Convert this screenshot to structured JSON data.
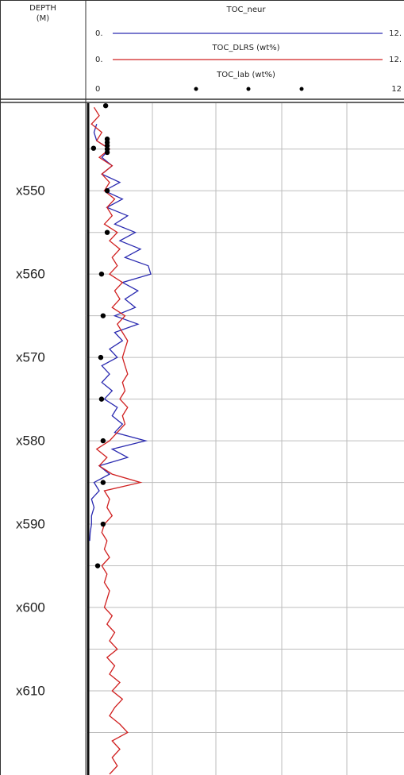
{
  "chart_data": {
    "type": "well-log",
    "depth_title": "DEPTH",
    "depth_unit": "(M)",
    "xlim": [
      0,
      12
    ],
    "ylim": [
      539.5,
      620.1
    ],
    "yticks": [
      {
        "value": 550,
        "label": "x550"
      },
      {
        "value": 560,
        "label": "x560"
      },
      {
        "value": 570,
        "label": "x570"
      },
      {
        "value": 580,
        "label": "x580"
      },
      {
        "value": 590,
        "label": "x590"
      },
      {
        "value": 600,
        "label": "x600"
      },
      {
        "value": 610,
        "label": "x610"
      }
    ],
    "ygrid": [
      545,
      555,
      565,
      575,
      585,
      595,
      605,
      615
    ],
    "series": [
      {
        "name": "TOC_neur",
        "color": "#2a2ab0",
        "style": "line",
        "scale": [
          {
            "value": 0,
            "label": "0."
          },
          {
            "value": 12,
            "label": "12."
          }
        ],
        "depths": [
          542,
          543,
          544,
          545,
          546,
          547,
          548,
          549,
          550,
          551,
          552,
          553,
          554,
          555,
          556,
          557,
          558,
          559,
          560,
          561,
          562,
          563,
          564,
          565,
          566,
          567,
          568,
          569,
          570,
          571,
          572,
          573,
          574,
          575,
          576,
          577,
          578,
          579,
          580,
          581,
          582,
          583,
          584,
          585,
          586,
          587,
          588,
          589,
          590,
          591,
          592
        ],
        "values": [
          0.3,
          0.2,
          0.3,
          0.8,
          0.5,
          0.9,
          0.5,
          1.2,
          0.6,
          1.3,
          0.7,
          1.5,
          1.0,
          1.8,
          1.2,
          2.0,
          1.4,
          2.3,
          2.4,
          1.3,
          1.9,
          1.4,
          1.8,
          1.0,
          1.9,
          1.0,
          1.3,
          0.8,
          1.1,
          0.5,
          0.8,
          0.5,
          0.9,
          0.6,
          1.1,
          0.9,
          1.3,
          1.0,
          2.2,
          0.9,
          1.5,
          0.4,
          0.8,
          0.2,
          0.4,
          0.1,
          0.2,
          0.1,
          0.1,
          0.05,
          0.03
        ]
      },
      {
        "name": "TOC_DLRS (wt%)",
        "color": "#d02020",
        "style": "line",
        "scale": [
          {
            "value": 0,
            "label": "0."
          },
          {
            "value": 12,
            "label": "12."
          }
        ],
        "depths": [
          540,
          541,
          542,
          543,
          544,
          545,
          546,
          547,
          548,
          549,
          550,
          551,
          552,
          553,
          554,
          555,
          556,
          557,
          558,
          559,
          560,
          561,
          562,
          563,
          564,
          565,
          566,
          567,
          568,
          569,
          570,
          571,
          572,
          573,
          574,
          575,
          576,
          577,
          578,
          579,
          580,
          581,
          582,
          583,
          584,
          585,
          586,
          587,
          588,
          589,
          590,
          591,
          592,
          593,
          594,
          595,
          596,
          597,
          598,
          599,
          600,
          601,
          602,
          603,
          604,
          605,
          606,
          607,
          608,
          609,
          610,
          611,
          612,
          613,
          614,
          615,
          616,
          617,
          618,
          619,
          620
        ],
        "values": [
          0.2,
          0.4,
          0.1,
          0.5,
          0.3,
          0.8,
          0.4,
          0.9,
          0.5,
          0.8,
          0.6,
          1.0,
          0.7,
          0.9,
          0.6,
          1.1,
          0.8,
          1.2,
          0.9,
          1.1,
          0.8,
          1.3,
          1.0,
          1.2,
          0.9,
          1.4,
          1.1,
          1.3,
          1.5,
          1.4,
          1.3,
          1.4,
          1.5,
          1.3,
          1.4,
          1.2,
          1.5,
          1.3,
          1.4,
          1.1,
          0.8,
          0.3,
          0.7,
          0.4,
          0.9,
          2.0,
          0.6,
          0.8,
          0.7,
          0.9,
          0.6,
          0.5,
          0.7,
          0.6,
          0.8,
          0.5,
          0.7,
          0.6,
          0.8,
          0.7,
          0.6,
          0.9,
          0.7,
          1.0,
          0.8,
          1.1,
          0.7,
          1.0,
          0.8,
          1.2,
          0.9,
          1.3,
          1.0,
          0.8,
          1.2,
          1.5,
          0.9,
          1.2,
          0.9,
          1.1,
          0.8
        ]
      },
      {
        "name": "TOC_lab (wt%)",
        "color": "#000000",
        "style": "dots",
        "scale": [
          0,
          12
        ],
        "depths": [
          539.8,
          543.8,
          544.2,
          544.6,
          544.9,
          545.0,
          545.4,
          550,
          555,
          560,
          565,
          570,
          575,
          580,
          585,
          590,
          595
        ],
        "values": [
          0.65,
          0.71,
          0.71,
          0.71,
          0.18,
          0.71,
          0.71,
          0.71,
          0.71,
          0.49,
          0.55,
          0.46,
          0.49,
          0.55,
          0.55,
          0.55,
          0.34
        ]
      }
    ]
  }
}
